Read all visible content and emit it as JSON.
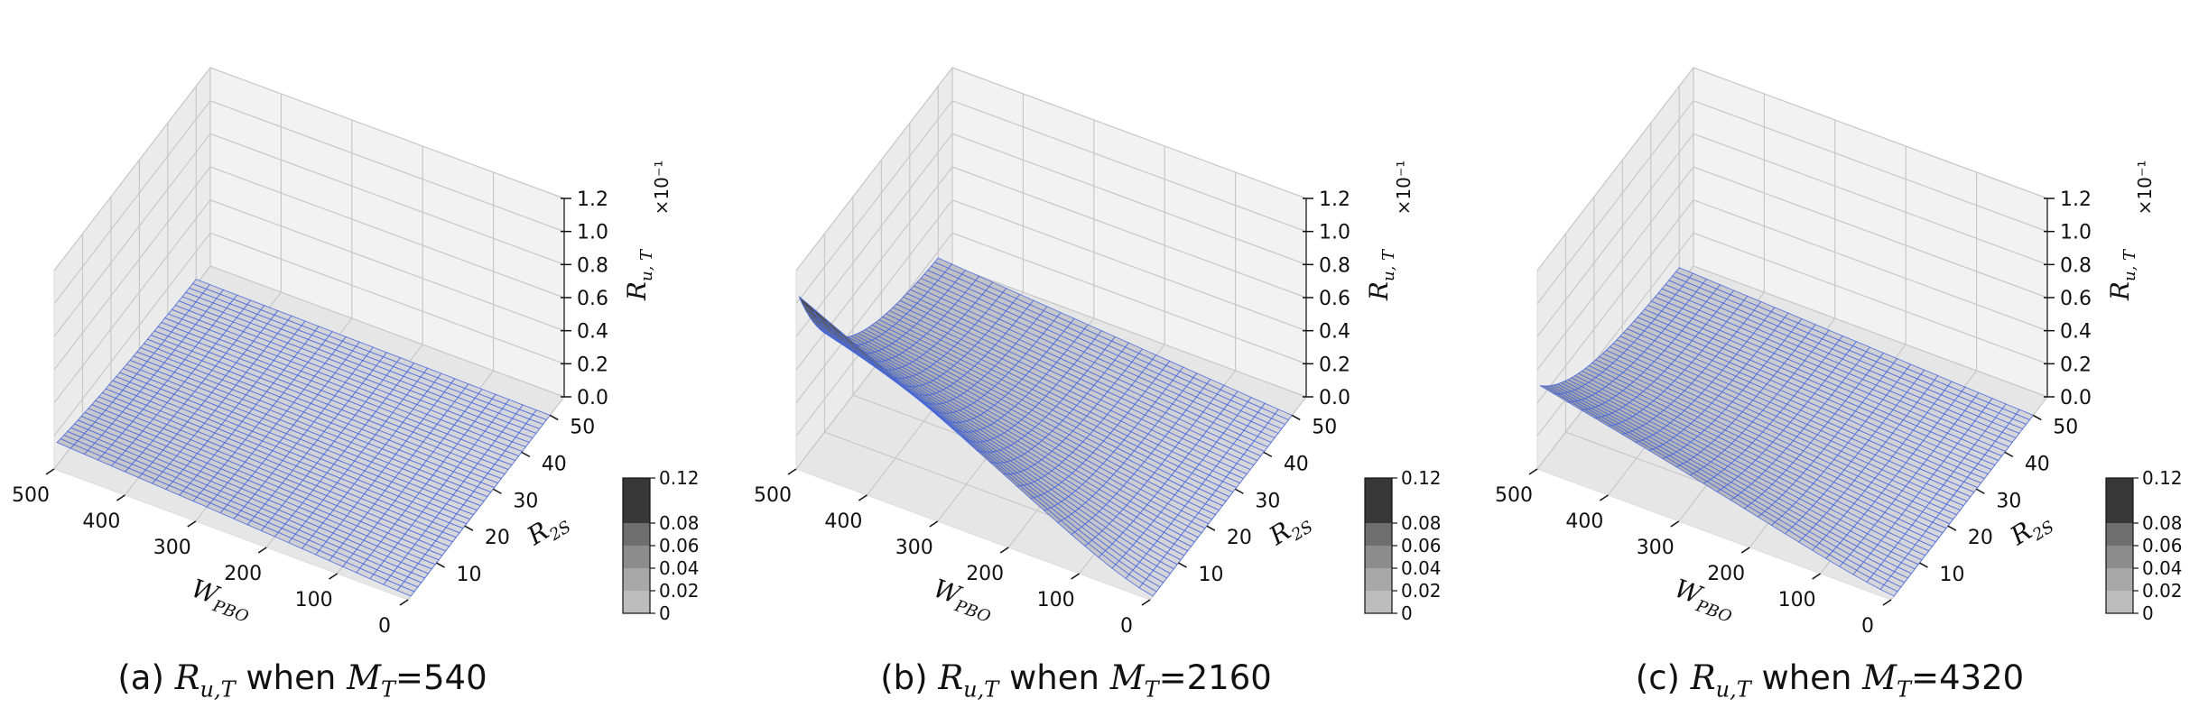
{
  "chart_data": [
    {
      "type": "surface3d",
      "caption": {
        "prefix": "(a) ",
        "sym": "R",
        "sym_sub": "u,T",
        "mid": " when ",
        "sym2": "M",
        "sym2_sub": "T",
        "suffix": "=540"
      },
      "xlabel": {
        "sym": "W",
        "sub": "PBO"
      },
      "ylabel": {
        "sym": "R",
        "sub": "2S"
      },
      "zlabel": {
        "sym": "R",
        "sub": "u, T"
      },
      "x_ticks": [
        "500",
        "400",
        "300",
        "200",
        "100",
        "0"
      ],
      "y_ticks": [
        "10",
        "20",
        "30",
        "40",
        "50"
      ],
      "z_ticks": [
        "0.0",
        "0.2",
        "0.4",
        "0.6",
        "0.8",
        "1.0",
        "1.2"
      ],
      "z_multiplier": "×10⁻¹",
      "xlim": [
        0,
        500
      ],
      "ylim": [
        0,
        55
      ],
      "zlim": [
        0,
        0.12
      ],
      "surface": {
        "peak": 0.013,
        "min": 0.0003,
        "x_decay": 70,
        "y_decay": 30,
        "base": 0.0002
      },
      "colorbar_ticks": [
        "0.12",
        "0.08",
        "0.06",
        "0.04",
        "0.02",
        "0"
      ],
      "mesh_color": "#4466dd"
    },
    {
      "type": "surface3d",
      "caption": {
        "prefix": "(b) ",
        "sym": "R",
        "sym_sub": "u,T",
        "mid": " when ",
        "sym2": "M",
        "sym2_sub": "T",
        "suffix": "=2160"
      },
      "xlabel": {
        "sym": "W",
        "sub": "PBO"
      },
      "ylabel": {
        "sym": "R",
        "sub": "2S"
      },
      "zlabel": {
        "sym": "R",
        "sub": "u, T"
      },
      "x_ticks": [
        "500",
        "400",
        "300",
        "200",
        "100",
        "0"
      ],
      "y_ticks": [
        "10",
        "20",
        "30",
        "40",
        "50"
      ],
      "z_ticks": [
        "0.0",
        "0.2",
        "0.4",
        "0.6",
        "0.8",
        "1.0",
        "1.2"
      ],
      "z_multiplier": "×10⁻¹",
      "xlim": [
        0,
        500
      ],
      "ylim": [
        0,
        55
      ],
      "zlim": [
        0,
        0.12
      ],
      "surface": {
        "peak": 0.09,
        "min": 0.0003,
        "x_decay": 120,
        "y_decay": 14,
        "base": 0.013
      },
      "colorbar_ticks": [
        "0.12",
        "0.08",
        "0.06",
        "0.04",
        "0.02",
        "0"
      ],
      "mesh_color": "#4466dd"
    },
    {
      "type": "surface3d",
      "caption": {
        "prefix": "(c) ",
        "sym": "R",
        "sym_sub": "u,T",
        "mid": " when ",
        "sym2": "M",
        "sym2_sub": "T",
        "suffix": "=4320"
      },
      "xlabel": {
        "sym": "W",
        "sub": "PBO"
      },
      "ylabel": {
        "sym": "R",
        "sub": "2S"
      },
      "zlabel": {
        "sym": "R",
        "sub": "u, T"
      },
      "x_ticks": [
        "500",
        "400",
        "300",
        "200",
        "100",
        "0"
      ],
      "y_ticks": [
        "10",
        "20",
        "30",
        "40",
        "50"
      ],
      "z_ticks": [
        "0.0",
        "0.2",
        "0.4",
        "0.6",
        "0.8",
        "1.0",
        "1.2"
      ],
      "z_multiplier": "×10⁻¹",
      "xlim": [
        0,
        500
      ],
      "ylim": [
        0,
        55
      ],
      "zlim": [
        0,
        0.12
      ],
      "surface": {
        "peak": 0.04,
        "min": 0.0003,
        "x_decay": 110,
        "y_decay": 16,
        "base": 0.008
      },
      "colorbar_ticks": [
        "0.12",
        "0.08",
        "0.06",
        "0.04",
        "0.02",
        "0"
      ],
      "mesh_color": "#4466dd"
    }
  ]
}
